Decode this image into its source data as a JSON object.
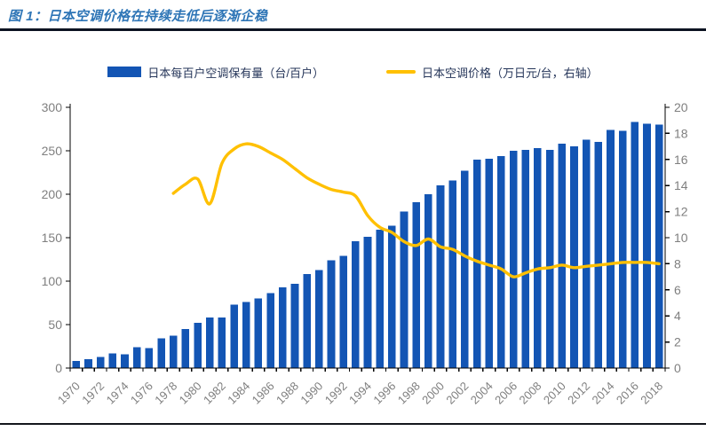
{
  "header": {
    "title": "图 1：日本空调价格在持续走低后逐渐企稳"
  },
  "colors": {
    "title": "#2E75B6",
    "bar": "#1355B4",
    "line": "#FFC000",
    "axis": "#000000",
    "tick_label": "#7F7F7F",
    "legend_text": "#26365A",
    "rule": "#0d1322"
  },
  "chart_data": {
    "type": "bar",
    "title": "图 1：日本空调价格在持续走低后逐渐企稳",
    "categories": [
      "1970",
      "1971",
      "1972",
      "1973",
      "1974",
      "1975",
      "1976",
      "1977",
      "1978",
      "1979",
      "1980",
      "1981",
      "1982",
      "1983",
      "1984",
      "1985",
      "1986",
      "1987",
      "1988",
      "1989",
      "1990",
      "1991",
      "1992",
      "1993",
      "1994",
      "1995",
      "1996",
      "1997",
      "1998",
      "1999",
      "2000",
      "2001",
      "2002",
      "2003",
      "2004",
      "2005",
      "2006",
      "2007",
      "2008",
      "2009",
      "2010",
      "2011",
      "2012",
      "2013",
      "2014",
      "2015",
      "2016",
      "2017",
      "2018"
    ],
    "x_label_every": 2,
    "series": [
      {
        "name": "日本每百户空调保有量（台/百户）",
        "type": "bar",
        "axis": "left",
        "values": [
          8,
          10,
          13,
          17,
          16,
          24,
          23,
          34,
          37,
          45,
          52,
          58,
          58,
          73,
          76,
          80,
          86,
          93,
          97,
          108,
          113,
          124,
          129,
          146,
          151,
          159,
          164,
          180,
          191,
          200,
          210,
          216,
          227,
          240,
          241,
          244,
          250,
          251,
          253,
          251,
          258,
          255,
          263,
          260,
          274,
          273,
          283,
          281,
          280
        ]
      },
      {
        "name": "日本空调价格（万日元/台，右轴）",
        "type": "line",
        "axis": "right",
        "start_category": "1978",
        "values": [
          13.4,
          14.1,
          14.5,
          12.6,
          15.7,
          16.8,
          17.2,
          17.0,
          16.5,
          16.0,
          15.3,
          14.6,
          14.1,
          13.7,
          13.5,
          13.2,
          11.7,
          10.8,
          10.4,
          9.7,
          9.4,
          9.9,
          9.3,
          9.1,
          8.6,
          8.2,
          7.9,
          7.6,
          7.0,
          7.3,
          7.6,
          7.7,
          7.9,
          7.7,
          7.8,
          7.9,
          8.0,
          8.1,
          8.1,
          8.1,
          8.0
        ]
      }
    ],
    "left_axis": {
      "min": 0,
      "max": 300,
      "step": 50
    },
    "right_axis": {
      "min": 0,
      "max": 20,
      "step": 2
    },
    "grid": false,
    "legend_position": "top"
  }
}
